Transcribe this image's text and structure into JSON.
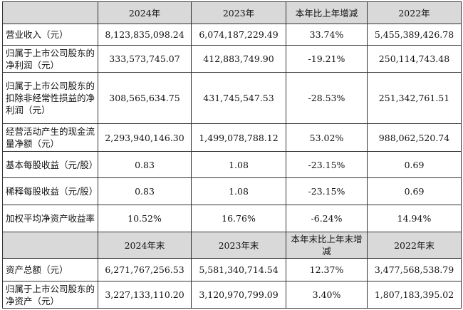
{
  "header1": [
    "2024年",
    "2023年",
    "本年比上年增减",
    "2022年"
  ],
  "rows1": [
    {
      "label": "营业收入（元）",
      "v2024": "8,123,835,098.24",
      "v2023": "6,074,187,229.49",
      "change": "33.74%",
      "v2022": "5,455,389,426.78"
    },
    {
      "label": "归属于上市公司股东的净利润（元）",
      "v2024": "333,573,745.07",
      "v2023": "412,883,749.90",
      "change": "-19.21%",
      "v2022": "250,114,743.48"
    },
    {
      "label": "归属于上市公司股东的扣除非经常性损益的净利润（元）",
      "v2024": "308,565,634.75",
      "v2023": "431,745,547.53",
      "change": "-28.53%",
      "v2022": "251,342,761.51"
    },
    {
      "label": "经营活动产生的现金流量净额（元）",
      "v2024": "2,293,940,146.30",
      "v2023": "1,499,078,788.12",
      "change": "53.02%",
      "v2022": "988,062,520.74"
    },
    {
      "label": "基本每股收益（元/股）",
      "v2024": "0.83",
      "v2023": "1.08",
      "change": "-23.15%",
      "v2022": "0.69"
    },
    {
      "label": "稀释每股收益（元/股）",
      "v2024": "0.83",
      "v2023": "1.08",
      "change": "-23.15%",
      "v2022": "0.69"
    },
    {
      "label": "加权平均净资产收益率",
      "v2024": "10.52%",
      "v2023": "16.76%",
      "change": "-6.24%",
      "v2022": "14.94%"
    }
  ],
  "header2": [
    "2024年末",
    "2023年末",
    "本年末比上年末增减",
    "2022年末"
  ],
  "rows2": [
    {
      "label": "资产总额（元）",
      "v2024": "6,271,767,256.53",
      "v2023": "5,581,340,714.54",
      "change": "12.37%",
      "v2022": "3,477,568,538.79"
    },
    {
      "label": "归属于上市公司股东的净资产（元）",
      "v2024": "3,227,133,110.20",
      "v2023": "3,120,970,799.09",
      "change": "3.40%",
      "v2022": "1,807,183,395.02"
    }
  ]
}
